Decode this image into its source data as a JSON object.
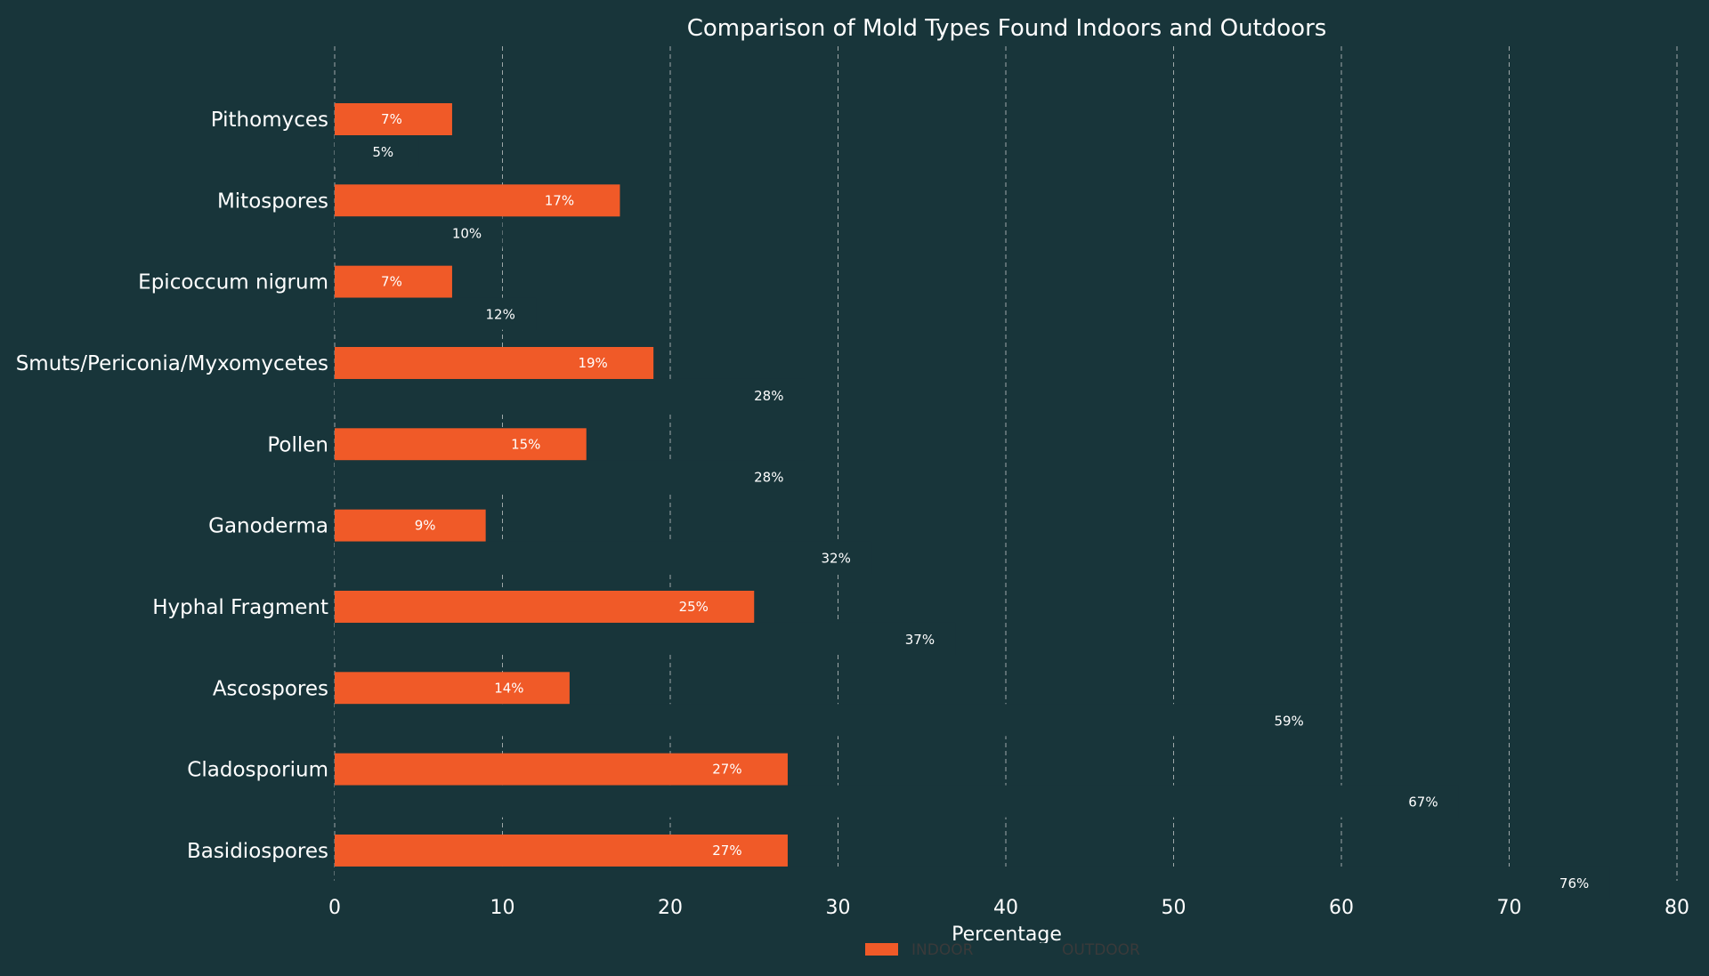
{
  "chart_data": {
    "type": "bar",
    "orientation": "horizontal",
    "title": "Comparison of Mold Types Found Indoors and Outdoors",
    "xlabel": "Percentage",
    "ylabel": "",
    "xlim": [
      0,
      80
    ],
    "xticks": [
      0,
      10,
      20,
      30,
      40,
      50,
      60,
      70,
      80
    ],
    "grid": "vertical dashed",
    "legend_position": "bottom-center",
    "categories": [
      "Pithomyces",
      "Mitospores",
      "Epicoccum nigrum",
      "Smuts/Periconia/Myxomycetes",
      "Pollen",
      "Ganoderma",
      "Hyphal Fragment",
      "Ascospores",
      "Cladosporium",
      "Basidiospores"
    ],
    "series": [
      {
        "name": "INDOOR",
        "values": [
          7,
          17,
          7,
          19,
          15,
          9,
          25,
          14,
          27,
          27
        ],
        "labels": [
          "7%",
          "17%",
          "7%",
          "19%",
          "15%",
          "9%",
          "25%",
          "14%",
          "27%",
          "27%"
        ],
        "color": "#f05a28"
      },
      {
        "name": "OUTDOOR",
        "values": [
          5,
          10,
          12,
          28,
          28,
          32,
          37,
          59,
          67,
          76
        ],
        "labels": [
          "5%",
          "10%",
          "12%",
          "28%",
          "28%",
          "32%",
          "37%",
          "59%",
          "67%",
          "76%"
        ],
        "color": "#18353a"
      }
    ]
  },
  "colors": {
    "background": "#18353a",
    "text": "#ffffff",
    "grid": "#d9d9d9",
    "indoor": "#f05a28",
    "outdoor_legend_text": "#3a3a3a"
  }
}
